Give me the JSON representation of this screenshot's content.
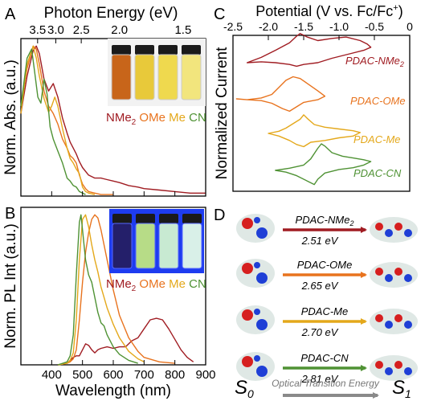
{
  "colors": {
    "NMe2": "#a01c22",
    "OMe": "#e8731e",
    "Me": "#e4a81b",
    "CN": "#4f9234",
    "axis": "#000000",
    "arrow_gray": "#8a8a8a"
  },
  "panel_letters": {
    "a": "A",
    "b": "B",
    "c": "C",
    "d": "D"
  },
  "panelA": {
    "top_axis_title": "Photon Energy (eV)",
    "top_ticks": [
      "3.5",
      "3.0",
      "2.5",
      "2.0",
      "1.5"
    ],
    "ylabel": "Norm. Abs. (a.u.)",
    "legend": [
      "NMe",
      "2",
      "OMe",
      "Me",
      "CN"
    ]
  },
  "panelB": {
    "ylabel": "Norm. PL Int (a.u.)",
    "xlabel": "Wavelength (nm)",
    "x_ticks": [
      "400",
      "500",
      "600",
      "700",
      "800",
      "900"
    ],
    "legend": [
      "NMe",
      "2",
      "OMe",
      "Me",
      "CN"
    ]
  },
  "panelC": {
    "top_axis_title": "Potential (V vs. Fc/Fc",
    "top_axis_sup": "+",
    "top_axis_close": ")",
    "top_ticks": [
      "-2.5",
      "-2.0",
      "-1.5",
      "-1.0",
      "-0.5",
      "0"
    ],
    "ylabel": "Normalized Current",
    "labels": [
      "PDAC-NMe",
      "2",
      "PDAC-OMe",
      "PDAC-Me",
      "PDAC-CN"
    ]
  },
  "panelD": {
    "transitions": [
      {
        "name": "PDAC-NMe",
        "sub": "2",
        "energy": "2.51 eV"
      },
      {
        "name": "PDAC-OMe",
        "sub": "",
        "energy": "2.65 eV"
      },
      {
        "name": "PDAC-Me",
        "sub": "",
        "energy": "2.70 eV"
      },
      {
        "name": "PDAC-CN",
        "sub": "",
        "energy": "2.81 eV"
      }
    ],
    "s0": "S",
    "s0_sub": "0",
    "s1": "S",
    "s1_sub": "1",
    "axis_caption": "Optical Transition Energy"
  },
  "chart_data": [
    {
      "type": "line",
      "panel": "A",
      "xlabel": "",
      "ylabel": "Norm. Abs. (a.u.)",
      "secondary_x_label": "Photon Energy (eV)",
      "secondary_x_ticks": [
        3.5,
        3.0,
        2.5,
        2.0,
        1.5
      ],
      "xlim": [
        300,
        900
      ],
      "ylim": [
        0,
        1.05
      ],
      "series": [
        {
          "name": "NMe2",
          "x": [
            300,
            320,
            340,
            350,
            360,
            375,
            390,
            405,
            420,
            435,
            450,
            460,
            470,
            480,
            490,
            500,
            520,
            540,
            560,
            580,
            600,
            620,
            650,
            680,
            700,
            750,
            800,
            850,
            900
          ],
          "y": [
            0.55,
            0.8,
            0.97,
            1.0,
            0.95,
            0.78,
            0.7,
            0.75,
            0.66,
            0.52,
            0.42,
            0.36,
            0.32,
            0.28,
            0.23,
            0.19,
            0.14,
            0.12,
            0.12,
            0.11,
            0.1,
            0.09,
            0.07,
            0.06,
            0.05,
            0.04,
            0.03,
            0.02,
            0.02
          ]
        },
        {
          "name": "OMe",
          "x": [
            300,
            320,
            340,
            350,
            360,
            375,
            390,
            405,
            420,
            435,
            450,
            460,
            470,
            480,
            490,
            500,
            510,
            520,
            540,
            560,
            600
          ],
          "y": [
            0.6,
            0.85,
            1.0,
            0.98,
            0.88,
            0.7,
            0.6,
            0.55,
            0.48,
            0.38,
            0.32,
            0.27,
            0.25,
            0.22,
            0.14,
            0.08,
            0.05,
            0.03,
            0.02,
            0.01,
            0.01
          ]
        },
        {
          "name": "Me",
          "x": [
            300,
            320,
            340,
            350,
            360,
            375,
            390,
            400,
            410,
            420,
            435,
            450,
            460,
            470,
            480,
            490,
            500,
            510,
            520,
            540
          ],
          "y": [
            0.55,
            0.88,
            1.0,
            0.92,
            0.8,
            0.65,
            0.56,
            0.6,
            0.66,
            0.6,
            0.45,
            0.32,
            0.25,
            0.22,
            0.18,
            0.15,
            0.06,
            0.03,
            0.02,
            0.01
          ]
        },
        {
          "name": "CN",
          "x": [
            300,
            320,
            335,
            345,
            355,
            365,
            375,
            385,
            395,
            405,
            420,
            435,
            450,
            460,
            470,
            480,
            490,
            500,
            510
          ],
          "y": [
            0.6,
            0.92,
            0.98,
            0.82,
            0.66,
            0.62,
            0.78,
            0.68,
            0.46,
            0.38,
            0.3,
            0.22,
            0.12,
            0.1,
            0.07,
            0.06,
            0.03,
            0.02,
            0.01
          ]
        }
      ]
    },
    {
      "type": "line",
      "panel": "B",
      "xlabel": "Wavelength (nm)",
      "ylabel": "Norm. PL Int (a.u.)",
      "xlim": [
        300,
        900
      ],
      "ylim": [
        0,
        1.05
      ],
      "x_ticks": [
        400,
        500,
        600,
        700,
        800,
        900
      ],
      "series": [
        {
          "name": "NMe2",
          "x": [
            420,
            450,
            460,
            470,
            480,
            490,
            500,
            510,
            520,
            530,
            540,
            550,
            560,
            580,
            600,
            620,
            640,
            660,
            680,
            700,
            720,
            740,
            760,
            780,
            800,
            820,
            840,
            860
          ],
          "y": [
            0,
            0.01,
            0.03,
            0.05,
            0.06,
            0.06,
            0.1,
            0.14,
            0.13,
            0.1,
            0.08,
            0.1,
            0.11,
            0.12,
            0.11,
            0.12,
            0.12,
            0.16,
            0.18,
            0.24,
            0.3,
            0.31,
            0.3,
            0.24,
            0.17,
            0.1,
            0.05,
            0.02
          ]
        },
        {
          "name": "OMe",
          "x": [
            420,
            450,
            460,
            470,
            480,
            490,
            500,
            510,
            520,
            530,
            540,
            550,
            560,
            580,
            600,
            620,
            650,
            680,
            700,
            750,
            800
          ],
          "y": [
            0,
            0.01,
            0.02,
            0.04,
            0.1,
            0.3,
            0.55,
            0.75,
            0.88,
            0.97,
            1.0,
            0.98,
            0.9,
            0.7,
            0.5,
            0.33,
            0.18,
            0.09,
            0.05,
            0.02,
            0.01
          ]
        },
        {
          "name": "Me",
          "x": [
            420,
            450,
            460,
            470,
            480,
            490,
            500,
            510,
            520,
            530,
            540,
            550,
            560,
            580,
            600,
            620,
            650,
            680,
            700
          ],
          "y": [
            0,
            0.01,
            0.03,
            0.08,
            0.3,
            0.7,
            0.97,
            1.0,
            0.92,
            0.8,
            0.7,
            0.62,
            0.52,
            0.38,
            0.27,
            0.18,
            0.09,
            0.04,
            0.02
          ]
        },
        {
          "name": "CN",
          "x": [
            420,
            450,
            460,
            470,
            480,
            490,
            495,
            500,
            505,
            510,
            520,
            530,
            540,
            550,
            560,
            570,
            580,
            600,
            620,
            650,
            680
          ],
          "y": [
            0,
            0.02,
            0.06,
            0.2,
            0.6,
            0.95,
            1.0,
            0.9,
            0.8,
            0.7,
            0.6,
            0.55,
            0.45,
            0.35,
            0.28,
            0.26,
            0.2,
            0.12,
            0.07,
            0.03,
            0.01
          ]
        }
      ]
    },
    {
      "type": "line",
      "panel": "C",
      "xlabel": "",
      "ylabel": "Normalized Current",
      "secondary_x_label": "Potential (V vs. Fc/Fc+)",
      "xlim": [
        -2.5,
        0
      ],
      "x_ticks": [
        -2.5,
        -2.0,
        -1.5,
        -1.0,
        -0.5,
        0
      ],
      "series": [
        {
          "name": "PDAC-NMe2",
          "x": [
            -2.3,
            -2.1,
            -1.9,
            -1.7,
            -1.6,
            -1.55,
            -1.45,
            -1.3,
            -1.1,
            -0.9,
            -0.7,
            -0.6,
            -0.55,
            -0.65,
            -0.85,
            -1.1,
            -1.3,
            -1.5,
            -1.6,
            -1.7,
            -1.9,
            -2.1,
            -2.3
          ],
          "y": [
            0,
            0.12,
            0.28,
            0.45,
            0.6,
            0.66,
            0.58,
            0.5,
            0.55,
            0.58,
            0.5,
            0.42,
            0.35,
            0.28,
            0.2,
            0.1,
            0.0,
            -0.04,
            -0.08,
            -0.04,
            0.0,
            0.02,
            0.0
          ]
        },
        {
          "name": "PDAC-OMe",
          "x": [
            -2.45,
            -2.3,
            -2.1,
            -1.95,
            -1.85,
            -1.75,
            -1.65,
            -1.55,
            -1.45,
            -1.3,
            -1.2,
            -1.3,
            -1.5,
            -1.6,
            -1.7,
            -1.8,
            -1.95,
            -2.1,
            -2.3,
            -2.45
          ],
          "y": [
            0,
            -0.02,
            0.02,
            0.1,
            0.26,
            0.42,
            0.5,
            0.46,
            0.35,
            0.18,
            0.06,
            -0.02,
            -0.08,
            -0.18,
            -0.28,
            -0.22,
            -0.1,
            -0.04,
            -0.02,
            0.0
          ]
        },
        {
          "name": "PDAC-Me",
          "x": [
            -2.0,
            -1.85,
            -1.75,
            -1.65,
            -1.55,
            -1.5,
            -1.45,
            -1.35,
            -1.2,
            -1.0,
            -0.8,
            -0.7,
            -0.8,
            -1.0,
            -1.2,
            -1.4,
            -1.5,
            -1.6,
            -1.7,
            -1.85,
            -2.0
          ],
          "y": [
            0,
            0.05,
            0.12,
            0.22,
            0.32,
            0.42,
            0.34,
            0.2,
            0.14,
            0.1,
            0.06,
            0.02,
            -0.06,
            -0.1,
            -0.16,
            -0.2,
            -0.3,
            -0.25,
            -0.16,
            -0.06,
            0.0
          ]
        },
        {
          "name": "PDAC-CN",
          "x": [
            -1.9,
            -1.7,
            -1.5,
            -1.4,
            -1.3,
            -1.25,
            -1.2,
            -1.1,
            -0.95,
            -0.8,
            -0.65,
            -0.55,
            -0.65,
            -0.8,
            -1.0,
            -1.2,
            -1.3,
            -1.35,
            -1.45,
            -1.6,
            -1.75,
            -1.9
          ],
          "y": [
            0,
            0.05,
            0.12,
            0.26,
            0.5,
            0.6,
            0.55,
            0.4,
            0.32,
            0.28,
            0.24,
            0.2,
            0.12,
            0.06,
            0.02,
            -0.06,
            -0.2,
            -0.32,
            -0.24,
            -0.12,
            -0.04,
            0.0
          ]
        }
      ]
    }
  ]
}
